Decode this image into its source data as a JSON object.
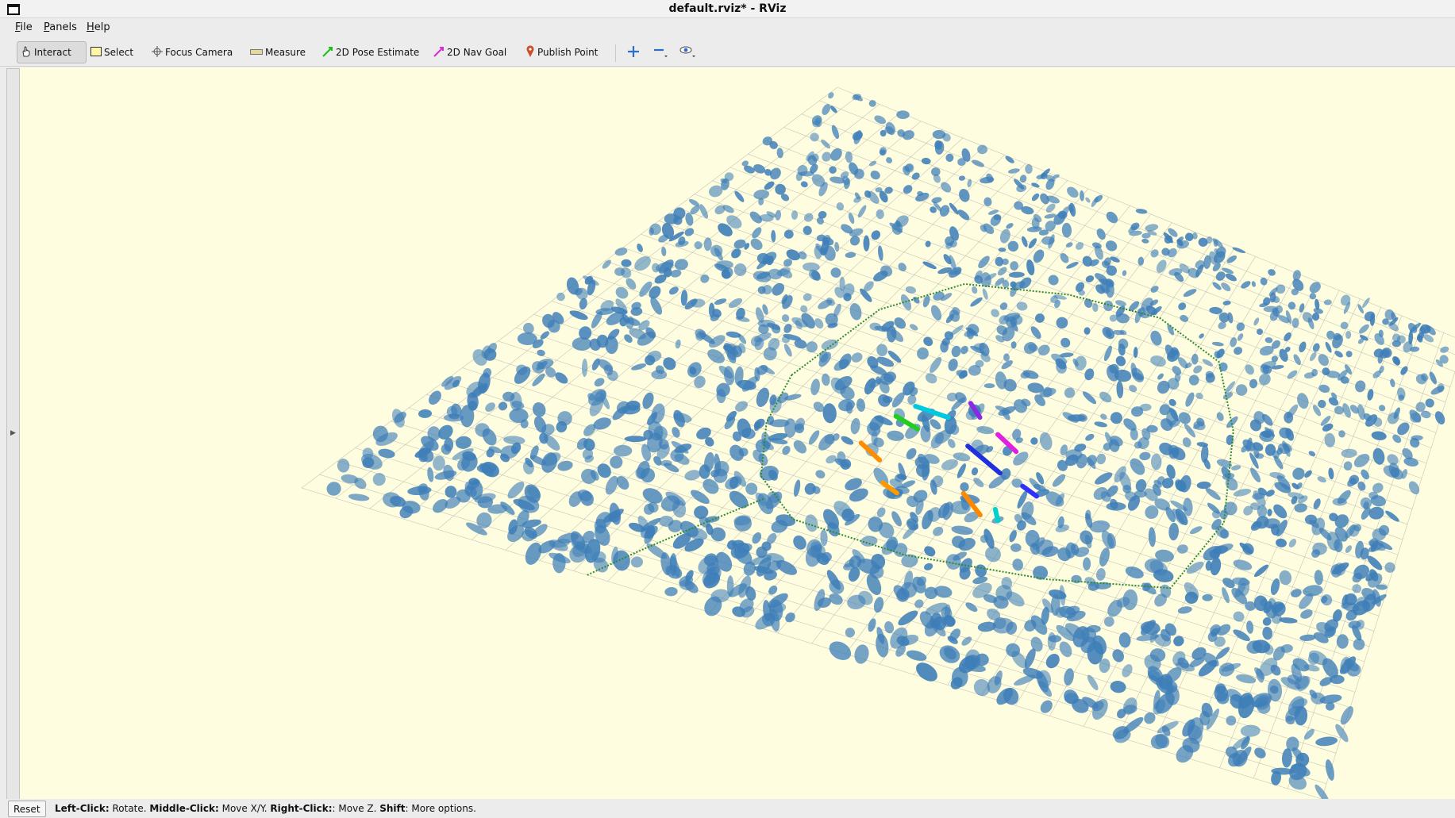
{
  "window": {
    "title": "default.rviz* - RViz"
  },
  "menu": [
    "File",
    "Panels",
    "Help"
  ],
  "toolbar": {
    "interact": "Interact",
    "select": "Select",
    "focus_camera": "Focus Camera",
    "measure": "Measure",
    "pose_estimate": "2D Pose Estimate",
    "nav_goal": "2D Nav Goal",
    "publish_point": "Publish Point",
    "icons": [
      "move-camera-icon",
      "zoom-out-icon",
      "eye-icon"
    ]
  },
  "colors": {
    "viewport_bg": "#fefddf",
    "pointcloud": "#3e7eb8",
    "path": "#2f8a2f",
    "grid": "#9a9a9a"
  },
  "status": {
    "reset_label": "Reset",
    "hint_parts": [
      {
        "bold": "Left-Click:",
        "text": " Rotate. "
      },
      {
        "bold": "Middle-Click:",
        "text": " Move X/Y. "
      },
      {
        "bold": "Right-Click:",
        "text": ": Move Z. "
      },
      {
        "bold": "Shift",
        "text": ": More options."
      }
    ]
  }
}
